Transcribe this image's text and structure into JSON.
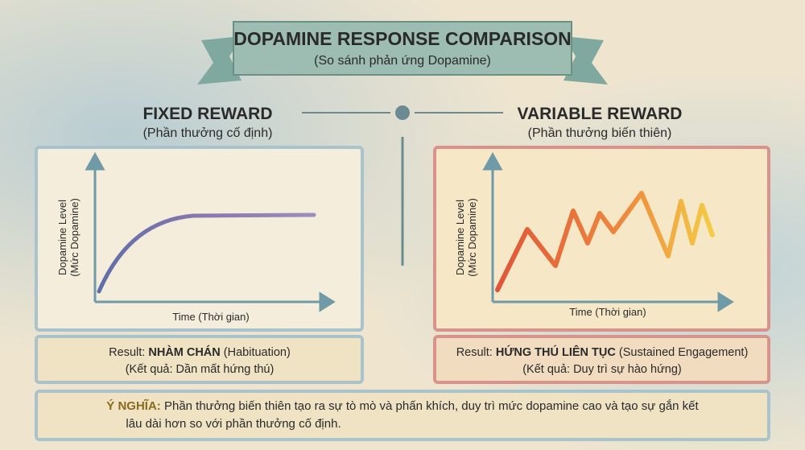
{
  "header": {
    "title": "DOPAMINE RESPONSE COMPARISON",
    "subtitle": "(So sánh phản ứng Dopamine)"
  },
  "panels": [
    {
      "title": "FIXED REWARD",
      "subtitle": "(Phần thưởng cố định)",
      "y_label": "Dopamine Level",
      "y_sublabel": "(Mức Dopamine)",
      "x_label": "Time (Thời gian)",
      "result": {
        "prefix": "Result:",
        "emphasis": "NHÀM CHÁN",
        "suffix": "(Habituation)",
        "note": "(Kết quả: Dần mất hứng thú)"
      }
    },
    {
      "title": "VARIABLE REWARD",
      "subtitle": "(Phần thưởng biến thiên)",
      "y_label": "Dopamine Level",
      "y_sublabel": "(Mức Dopamine)",
      "x_label": "Time (Thời gian)",
      "result": {
        "prefix": "Result:",
        "emphasis": "HỨNG THÚ LIÊN TỤC",
        "suffix": "(Sustained Engagement)",
        "note": "(Kết quả: Duy trì sự hào hứng)"
      }
    }
  ],
  "footer": {
    "label": "Ý NGHĨA:",
    "lines": [
      "Phần thưởng biến thiên tạo ra sự tò mò và phấn khích, duy trì mức dopamine cao và tạo sự gắn kết",
      "lâu dài hơn so với phần thưởng cố định."
    ]
  }
}
